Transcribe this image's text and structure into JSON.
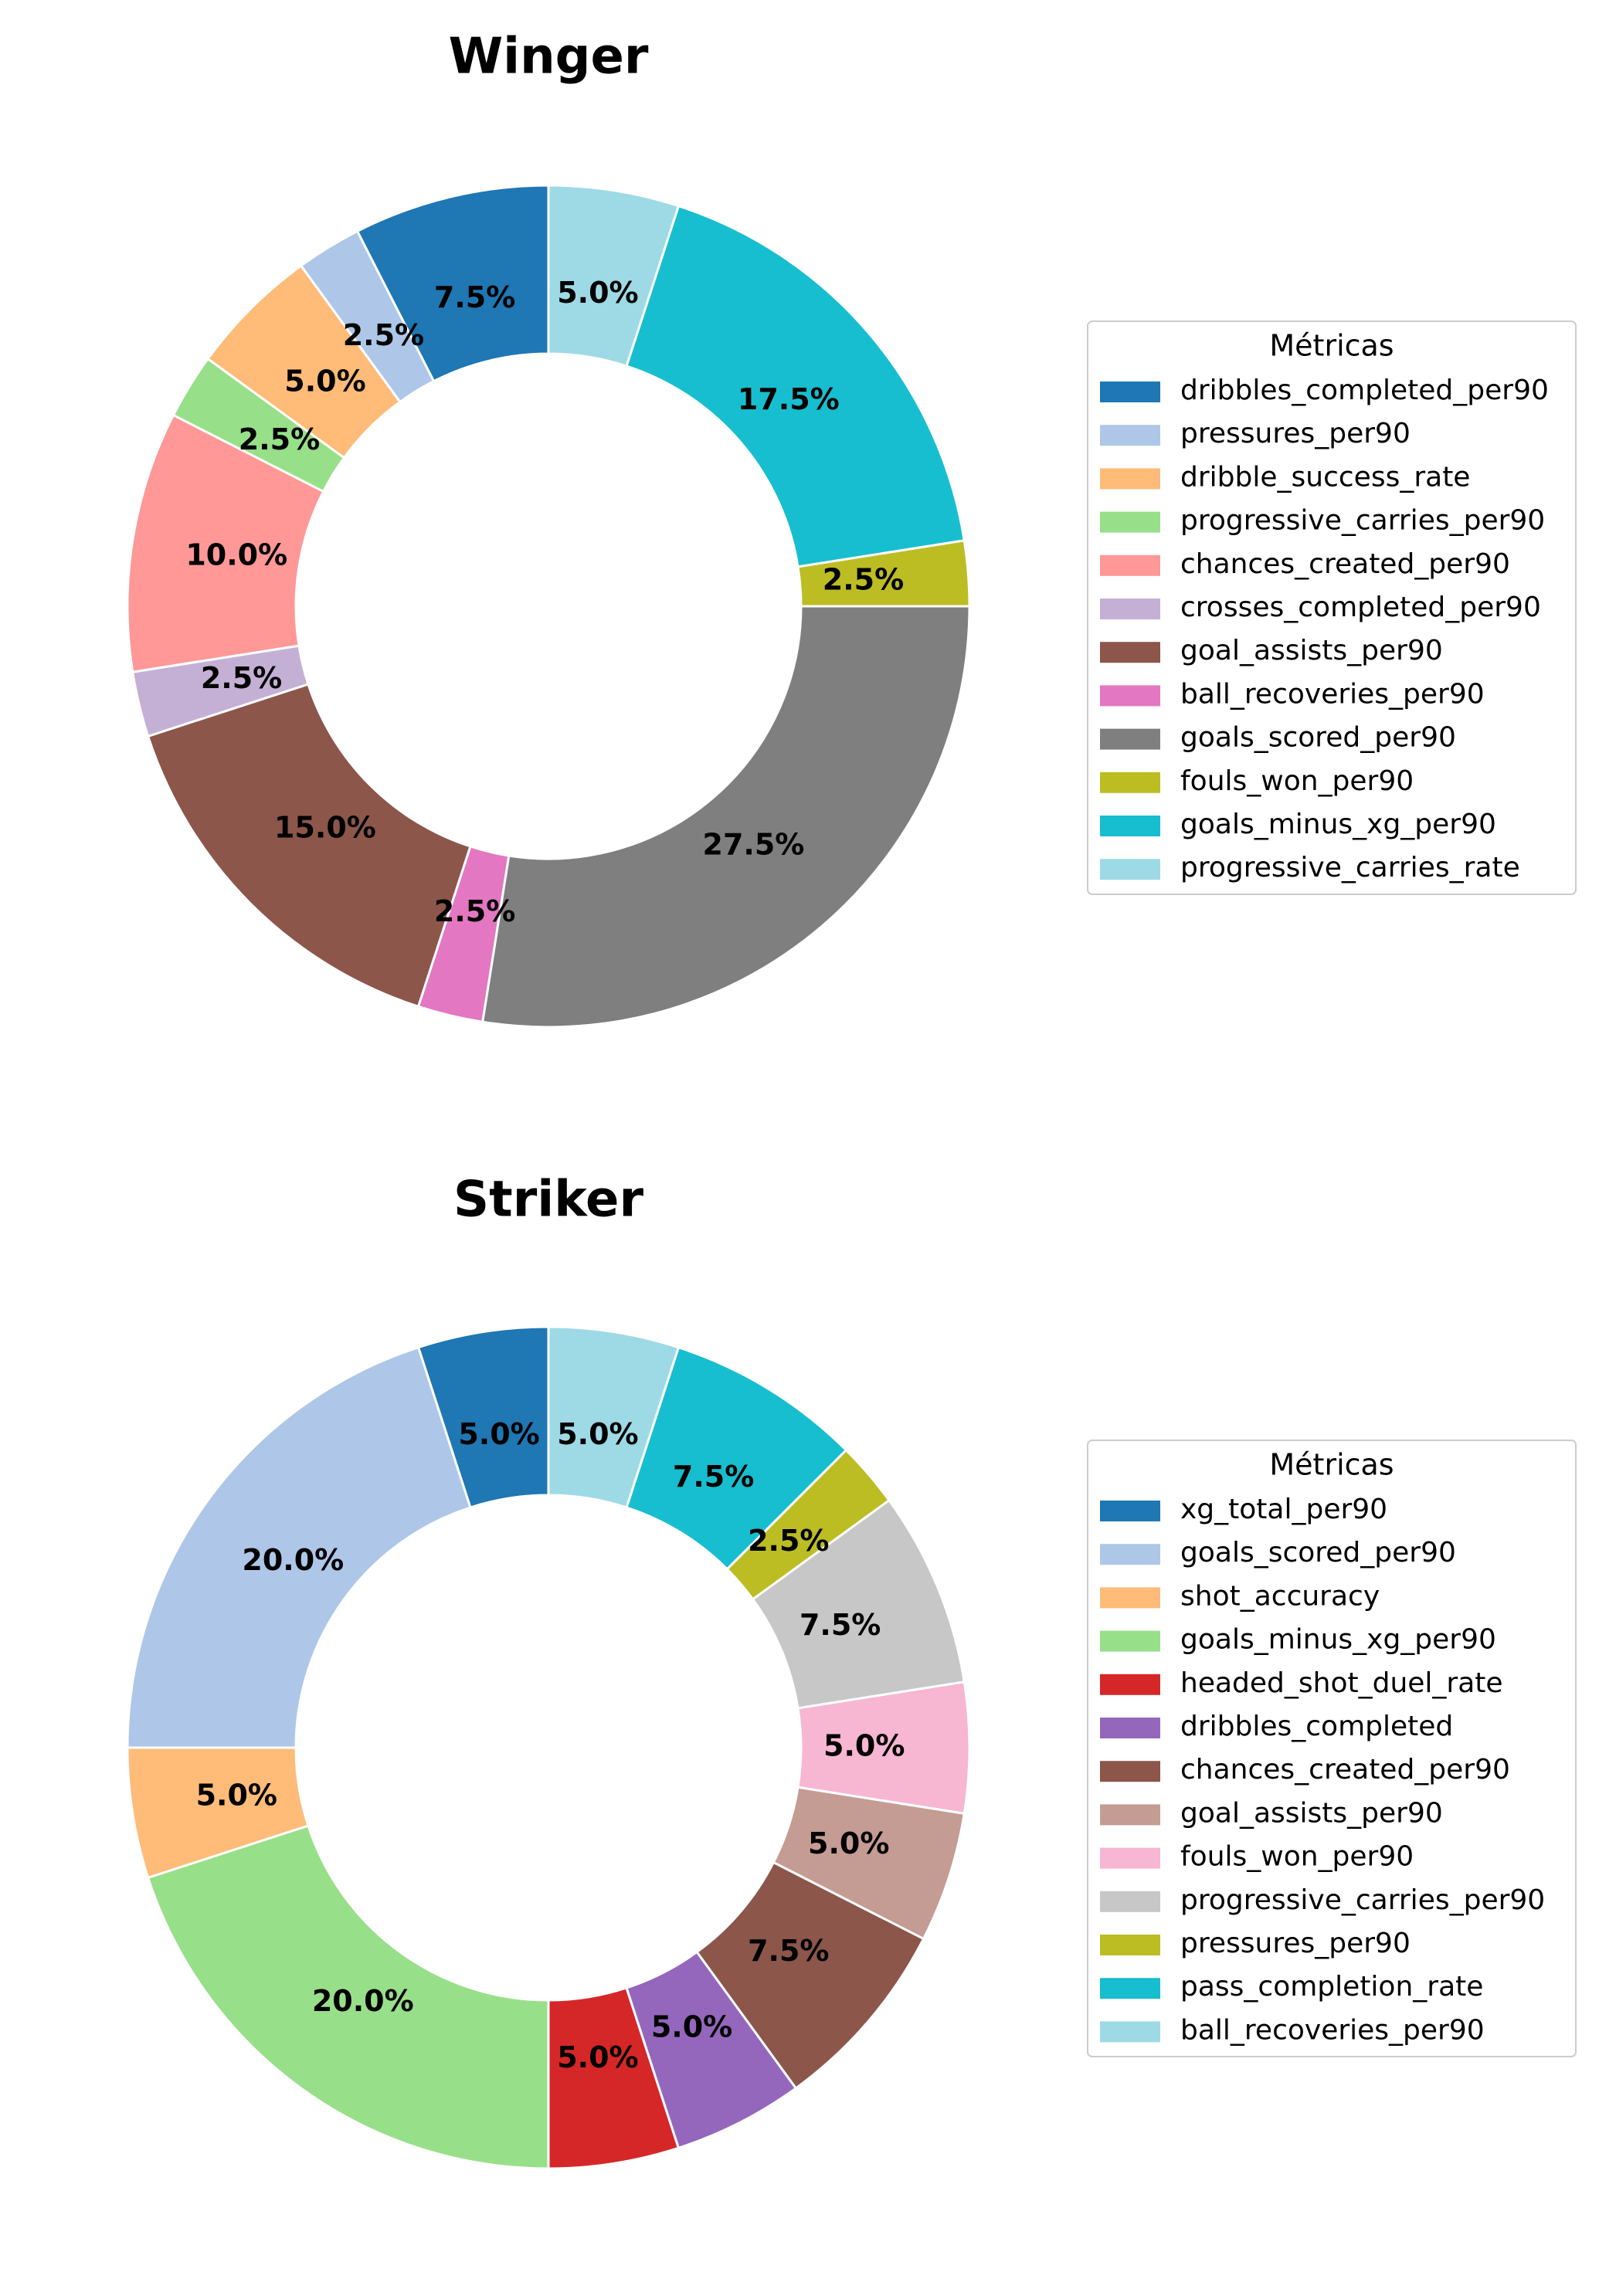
{
  "chart_data": [
    {
      "type": "pie",
      "donut": true,
      "title": "Winger",
      "start_angle_deg": 90,
      "direction": "counterclockwise",
      "legend_title": "Métricas",
      "legend_position": "right",
      "slices": [
        {
          "label": "dribbles_completed_per90",
          "value": 7.5,
          "pct_label": "7.5%",
          "color": "#1f77b4"
        },
        {
          "label": "pressures_per90",
          "value": 2.5,
          "pct_label": "2.5%",
          "color": "#aec7e8"
        },
        {
          "label": "dribble_success_rate",
          "value": 5.0,
          "pct_label": "5.0%",
          "color": "#ffbb78"
        },
        {
          "label": "progressive_carries_per90",
          "value": 2.5,
          "pct_label": "2.5%",
          "color": "#98df8a"
        },
        {
          "label": "chances_created_per90",
          "value": 10.0,
          "pct_label": "10.0%",
          "color": "#ff9896"
        },
        {
          "label": "crosses_completed_per90",
          "value": 2.5,
          "pct_label": "2.5%",
          "color": "#c5b0d5"
        },
        {
          "label": "goal_assists_per90",
          "value": 15.0,
          "pct_label": "15.0%",
          "color": "#8c564b"
        },
        {
          "label": "ball_recoveries_per90",
          "value": 2.5,
          "pct_label": "2.5%",
          "color": "#e377c2"
        },
        {
          "label": "goals_scored_per90",
          "value": 27.5,
          "pct_label": "27.5%",
          "color": "#7f7f7f"
        },
        {
          "label": "fouls_won_per90",
          "value": 2.5,
          "pct_label": "2.5%",
          "color": "#bcbd22"
        },
        {
          "label": "goals_minus_xg_per90",
          "value": 17.5,
          "pct_label": "17.5%",
          "color": "#17becf"
        },
        {
          "label": "progressive_carries_rate",
          "value": 5.0,
          "pct_label": "5.0%",
          "color": "#9edae5"
        }
      ]
    },
    {
      "type": "pie",
      "donut": true,
      "title": "Striker",
      "start_angle_deg": 90,
      "direction": "counterclockwise",
      "legend_title": "Métricas",
      "legend_position": "right",
      "slices": [
        {
          "label": "xg_total_per90",
          "value": 5.0,
          "pct_label": "5.0%",
          "color": "#1f77b4"
        },
        {
          "label": "goals_scored_per90",
          "value": 20.0,
          "pct_label": "20.0%",
          "color": "#aec7e8"
        },
        {
          "label": "shot_accuracy",
          "value": 5.0,
          "pct_label": "5.0%",
          "color": "#ffbb78"
        },
        {
          "label": "goals_minus_xg_per90",
          "value": 20.0,
          "pct_label": "20.0%",
          "color": "#98df8a"
        },
        {
          "label": "headed_shot_duel_rate",
          "value": 5.0,
          "pct_label": "5.0%",
          "color": "#d62728"
        },
        {
          "label": "dribbles_completed",
          "value": 5.0,
          "pct_label": "5.0%",
          "color": "#9467bd"
        },
        {
          "label": "chances_created_per90",
          "value": 7.5,
          "pct_label": "7.5%",
          "color": "#8c564b"
        },
        {
          "label": "goal_assists_per90",
          "value": 5.0,
          "pct_label": "5.0%",
          "color": "#c49c94"
        },
        {
          "label": "fouls_won_per90",
          "value": 5.0,
          "pct_label": "5.0%",
          "color": "#f7b6d2"
        },
        {
          "label": "progressive_carries_per90",
          "value": 7.5,
          "pct_label": "7.5%",
          "color": "#c7c7c7"
        },
        {
          "label": "pressures_per90",
          "value": 2.5,
          "pct_label": "2.5%",
          "color": "#bcbd22"
        },
        {
          "label": "pass_completion_rate",
          "value": 7.5,
          "pct_label": "7.5%",
          "color": "#17becf"
        },
        {
          "label": "ball_recoveries_per90",
          "value": 5.0,
          "pct_label": "5.0%",
          "color": "#9edae5"
        }
      ]
    }
  ]
}
